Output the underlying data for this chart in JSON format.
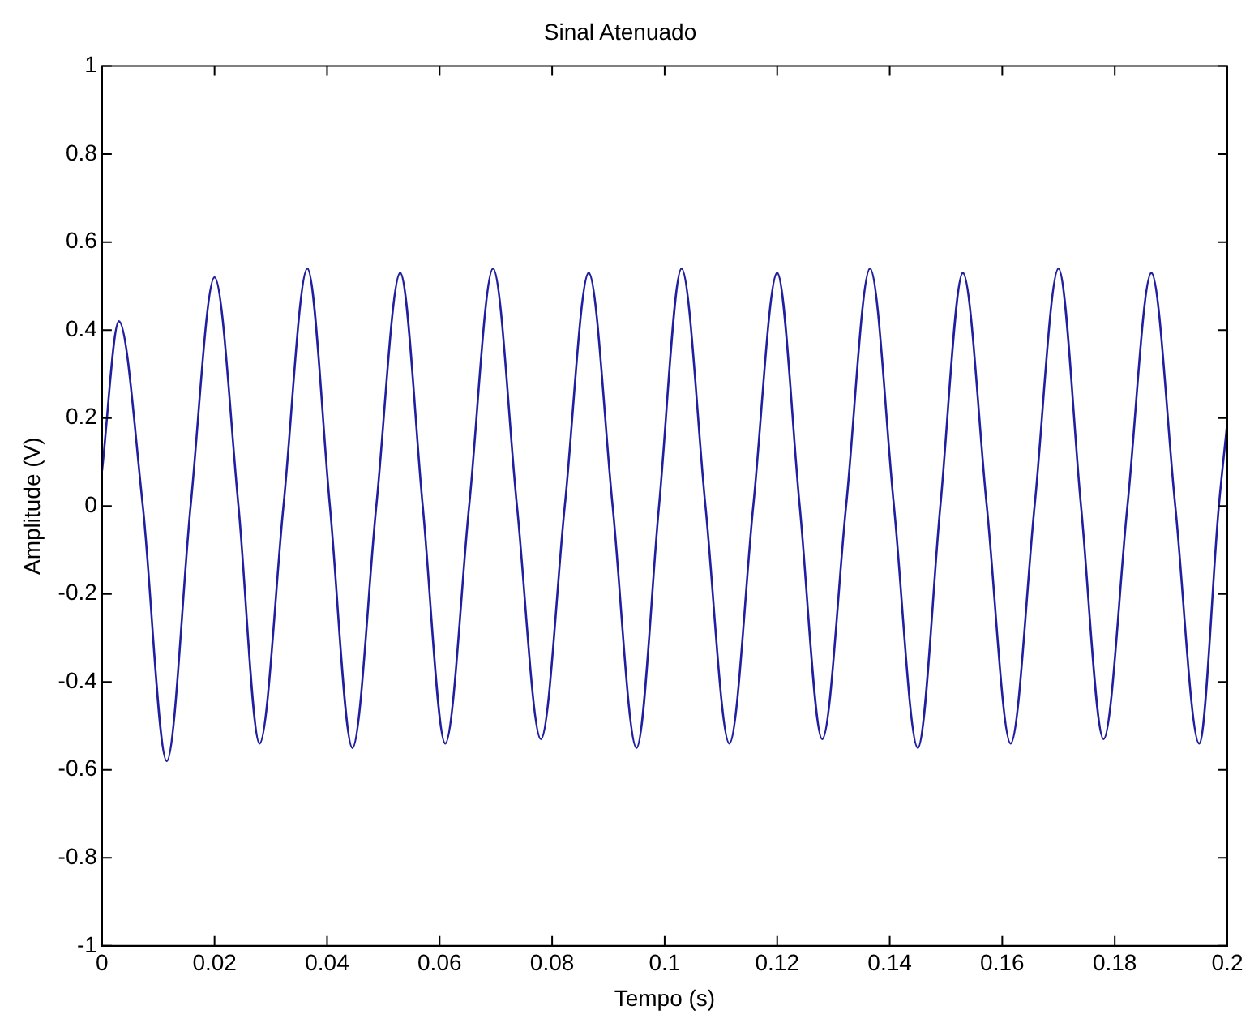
{
  "chart_data": {
    "type": "line",
    "title": "Sinal Atenuado",
    "xlabel": "Tempo (s)",
    "ylabel": "Amplitude (V)",
    "xlim": [
      0,
      0.2
    ],
    "xticks": [
      0,
      0.02,
      0.04,
      0.06,
      0.08,
      0.1,
      0.12,
      0.14,
      0.16,
      0.18,
      0.2
    ],
    "ylim": [
      -1,
      1
    ],
    "yticks": [
      -1,
      -0.8,
      -0.6,
      -0.4,
      -0.2,
      0,
      0.2,
      0.4,
      0.6,
      0.8,
      1
    ],
    "grid": false,
    "legend": false,
    "marker": "none",
    "line_style": "solid",
    "series": [
      {
        "color": "#1f1fa0",
        "x": [
          0,
          0.003,
          0.00725,
          0.0115,
          0.01575,
          0.02,
          0.02425,
          0.028,
          0.03225,
          0.0365,
          0.0405,
          0.0445,
          0.04875,
          0.053,
          0.057,
          0.061,
          0.06525,
          0.0695,
          0.07375,
          0.078,
          0.08225,
          0.0865,
          0.09075,
          0.095,
          0.099,
          0.103,
          0.10725,
          0.1115,
          0.11575,
          0.12,
          0.124,
          0.128,
          0.13225,
          0.1365,
          0.14075,
          0.145,
          0.149,
          0.153,
          0.15725,
          0.1615,
          0.16575,
          0.17,
          0.174,
          0.178,
          0.18225,
          0.1865,
          0.19075,
          0.195,
          0.1985,
          0.2
        ],
        "values": [
          0.08,
          0.42,
          0,
          -0.58,
          0,
          0.52,
          0,
          -0.54,
          0,
          0.54,
          0,
          -0.55,
          0,
          0.53,
          0,
          -0.54,
          0,
          0.54,
          0,
          -0.53,
          0,
          0.53,
          0,
          -0.55,
          0,
          0.54,
          0,
          -0.54,
          0,
          0.53,
          0,
          -0.53,
          0,
          0.54,
          0,
          -0.55,
          0,
          0.53,
          0,
          -0.54,
          0,
          0.54,
          0,
          -0.53,
          0,
          0.53,
          0,
          -0.54,
          0,
          0.19
        ]
      }
    ]
  }
}
